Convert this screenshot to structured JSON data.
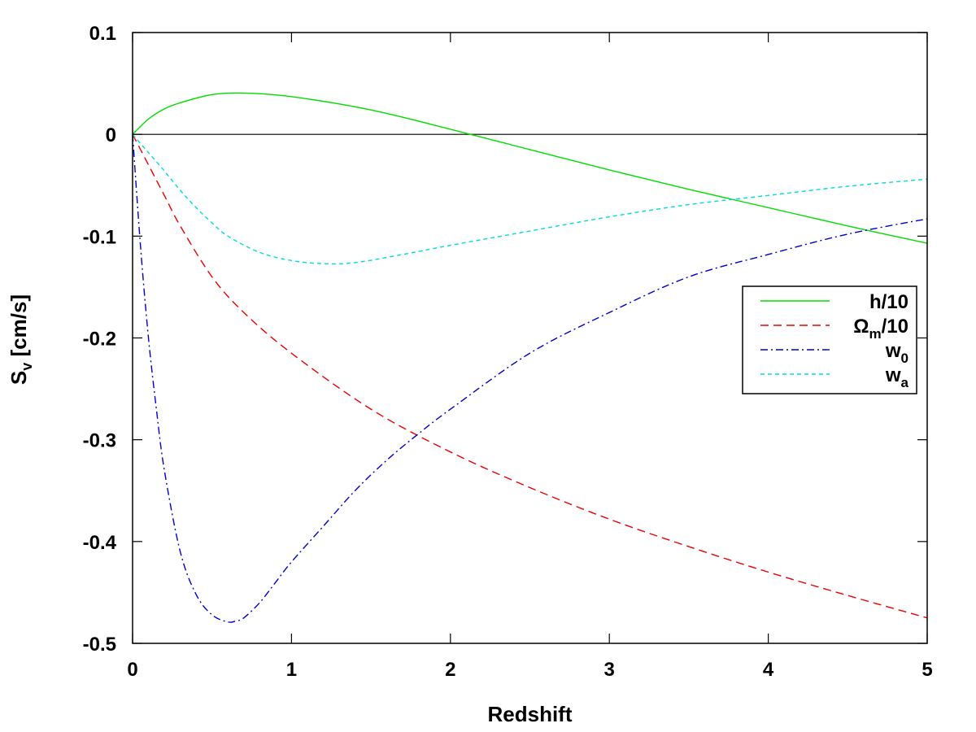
{
  "chart_data": {
    "type": "line",
    "xlabel": "Redshift",
    "ylabel_main": "S",
    "ylabel_sub": "v",
    "ylabel_units": " [cm/s]",
    "xlim": [
      0,
      5
    ],
    "ylim": [
      -0.5,
      0.1
    ],
    "xticks": [
      0,
      1,
      2,
      3,
      4,
      5
    ],
    "xtick_labels": [
      "0",
      "1",
      "2",
      "3",
      "4",
      "5"
    ],
    "yticks": [
      0.1,
      0,
      -0.1,
      -0.2,
      -0.3,
      -0.4,
      -0.5
    ],
    "ytick_labels": [
      "0.1",
      "0",
      "-0.1",
      "-0.2",
      "-0.3",
      "-0.4",
      "-0.5"
    ],
    "zero_line": true,
    "grid": false,
    "legend_position": "right",
    "series": [
      {
        "name": "h/10",
        "label_main": "h/10",
        "label_sub": "",
        "label_tail": "",
        "color": "#00dd00",
        "dash": "",
        "x": [
          0,
          0.1,
          0.2,
          0.3,
          0.5,
          0.7,
          1.0,
          1.5,
          2.0,
          2.5,
          3.0,
          3.5,
          4.0,
          4.5,
          5.0
        ],
        "y": [
          0,
          0.015,
          0.025,
          0.031,
          0.039,
          0.0405,
          0.037,
          0.024,
          0.005,
          -0.015,
          -0.035,
          -0.054,
          -0.072,
          -0.09,
          -0.107
        ]
      },
      {
        "name": "Ωm/10",
        "label_main": "Ω",
        "label_sub": "m",
        "label_tail": "/10",
        "color": "#ee0000",
        "dash": "10,6",
        "x": [
          0,
          0.1,
          0.2,
          0.3,
          0.5,
          0.7,
          1.0,
          1.5,
          2.0,
          2.5,
          3.0,
          3.5,
          4.0,
          4.5,
          5.0
        ],
        "y": [
          0,
          -0.03,
          -0.06,
          -0.09,
          -0.14,
          -0.175,
          -0.215,
          -0.27,
          -0.312,
          -0.347,
          -0.378,
          -0.405,
          -0.43,
          -0.453,
          -0.475
        ]
      },
      {
        "name": "w0",
        "label_main": "w",
        "label_sub": "0",
        "label_tail": "",
        "color": "#0000cc",
        "dash": "9,4,2,4",
        "x": [
          0,
          0.05,
          0.1,
          0.15,
          0.2,
          0.3,
          0.4,
          0.5,
          0.6,
          0.65,
          0.7,
          0.8,
          0.9,
          1.0,
          1.2,
          1.4,
          1.6,
          1.8,
          2.0,
          2.5,
          3.0,
          3.5,
          4.0,
          4.5,
          5.0
        ],
        "y": [
          0,
          -0.11,
          -0.2,
          -0.27,
          -0.33,
          -0.41,
          -0.452,
          -0.472,
          -0.479,
          -0.478,
          -0.475,
          -0.46,
          -0.44,
          -0.42,
          -0.385,
          -0.35,
          -0.32,
          -0.294,
          -0.27,
          -0.215,
          -0.175,
          -0.14,
          -0.118,
          -0.098,
          -0.083
        ]
      },
      {
        "name": "wa",
        "label_main": "w",
        "label_sub": "a",
        "label_tail": "",
        "color": "#00dddd",
        "dash": "5,4",
        "x": [
          0,
          0.1,
          0.2,
          0.3,
          0.4,
          0.5,
          0.6,
          0.8,
          1.0,
          1.2,
          1.4,
          1.7,
          2.0,
          2.5,
          3.0,
          3.5,
          4.0,
          4.5,
          5.0
        ],
        "y": [
          0,
          -0.018,
          -0.036,
          -0.055,
          -0.072,
          -0.087,
          -0.1,
          -0.116,
          -0.124,
          -0.127,
          -0.126,
          -0.118,
          -0.109,
          -0.095,
          -0.081,
          -0.069,
          -0.06,
          -0.051,
          -0.044
        ]
      }
    ]
  }
}
